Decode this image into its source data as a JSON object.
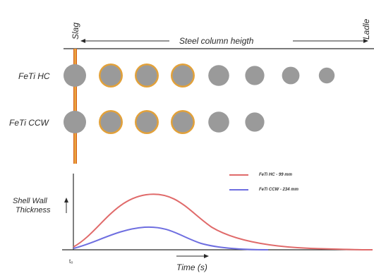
{
  "header": {
    "slag_label": "Slag",
    "ladle_label": "Ladle",
    "column_label": "Steel column heigth"
  },
  "rows": [
    {
      "label": "FeTi HC",
      "shelled": [
        false,
        true,
        true,
        true,
        false,
        false,
        false,
        false
      ]
    },
    {
      "label": "FeTi CCW",
      "shelled": [
        false,
        true,
        true,
        true,
        false,
        false
      ]
    }
  ],
  "colors": {
    "particle": "#9a9a9a",
    "shell": "#e2a13a",
    "slag_line": "#d9641c",
    "slag_line_inner": "#f0b84a",
    "hc_curve": "#e06a6a",
    "ccw_curve": "#6e6ee0",
    "axis": "#2a2a2a"
  },
  "chart": {
    "ylabel_line1": "Shell Wall",
    "ylabel_line2": "Thickness",
    "xlabel": "Time (s)",
    "origin_label": "t₀",
    "series": [
      {
        "name": "FeTi HC - 99 mm",
        "color_key": "hc_curve"
      },
      {
        "name": "FeTi CCW - 234 mm",
        "color_key": "ccw_curve"
      }
    ]
  }
}
